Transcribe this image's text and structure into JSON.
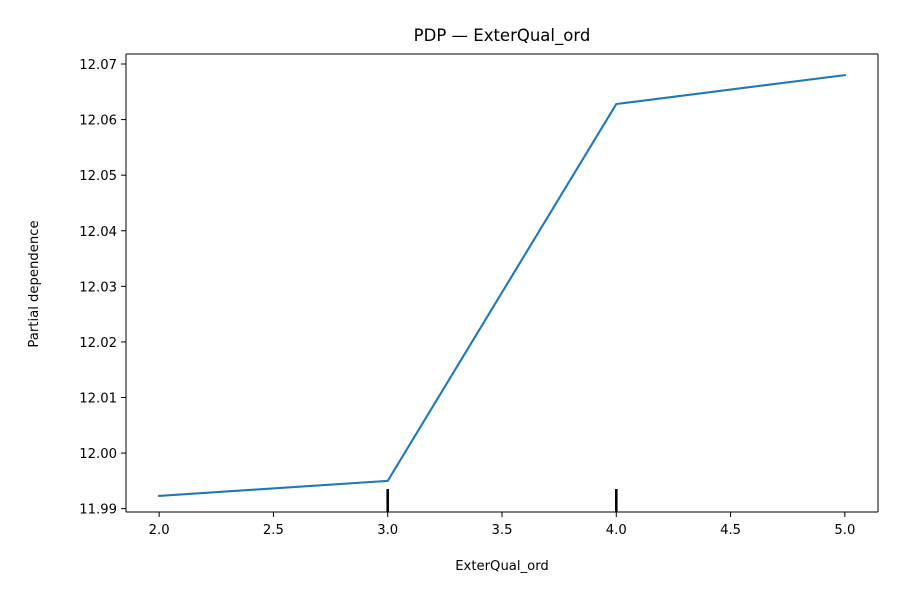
{
  "chart_data": {
    "type": "line",
    "title": "PDP — ExterQual_ord",
    "xlabel": "ExterQual_ord",
    "ylabel": "Partial dependence",
    "xlim": [
      1.855,
      5.145
    ],
    "ylim": [
      11.9894,
      12.0718
    ],
    "xticks": [
      2.0,
      2.5,
      3.0,
      3.5,
      4.0,
      4.5,
      5.0
    ],
    "xtick_labels": [
      "2.0",
      "2.5",
      "3.0",
      "3.5",
      "4.0",
      "4.5",
      "5.0"
    ],
    "yticks": [
      11.99,
      12.0,
      12.01,
      12.02,
      12.03,
      12.04,
      12.05,
      12.06,
      12.07
    ],
    "ytick_labels": [
      "11.99",
      "12.00",
      "12.01",
      "12.02",
      "12.03",
      "12.04",
      "12.05",
      "12.06",
      "12.07"
    ],
    "grid": false,
    "series": [
      {
        "x": [
          2.0,
          3.0,
          4.0,
          5.0
        ],
        "y": [
          11.9923,
          11.995,
          12.0628,
          12.068
        ],
        "color": "#1f77b4"
      }
    ],
    "rug": {
      "x": [
        3.0,
        4.0
      ],
      "color": "#000000"
    }
  }
}
